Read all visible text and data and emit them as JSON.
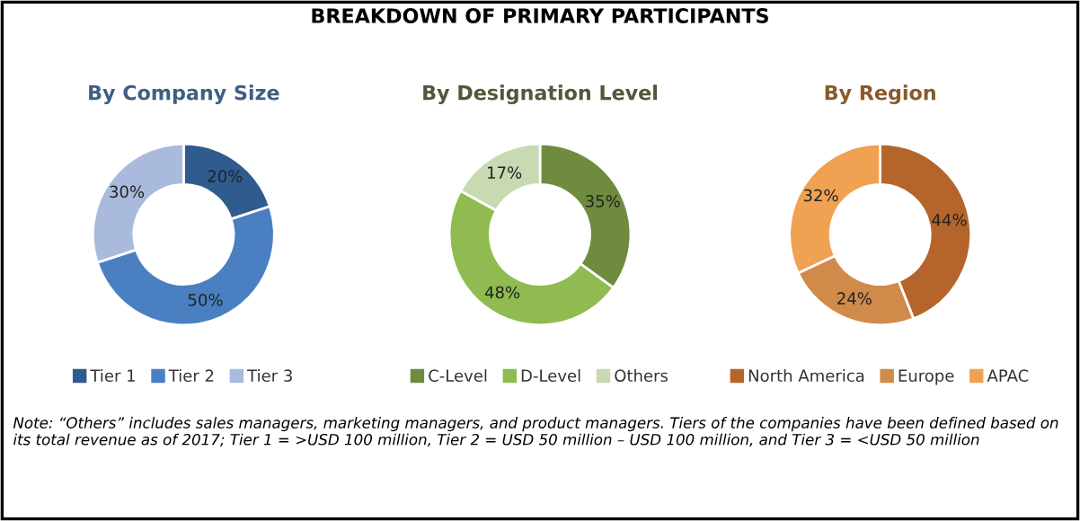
{
  "chart_data": [
    {
      "type": "donut",
      "title": "By Company Size",
      "categories": [
        "Tier 1",
        "Tier 2",
        "Tier 3"
      ],
      "values": [
        20,
        50,
        30
      ],
      "colors": [
        "#2f5b8e",
        "#4a7fc1",
        "#a9badd"
      ],
      "value_labels": [
        "20%",
        "50%",
        "30%"
      ],
      "legend": "bottom",
      "annotations": [
        "BREAKDOWN OF PRIMARY PARTICIPANTS",
        "Note: “Others” includes sales managers, marketing managers, and product managers. Tiers of the companies have been defined based on its total revenue as of 2017; Tier 1 = >USD 100 million, Tier 2 = USD 50 million – USD 100 million, and Tier 3 = <USD 50 million"
      ]
    },
    {
      "type": "donut",
      "title": "By Designation Level",
      "categories": [
        "C-Level",
        "D-Level",
        "Others"
      ],
      "values": [
        35,
        48,
        17
      ],
      "colors": [
        "#6f8c3e",
        "#8fbb50",
        "#c9d9b1"
      ],
      "value_labels": [
        "35%",
        "48%",
        "17%"
      ],
      "legend": "bottom"
    },
    {
      "type": "donut",
      "title": "By Region",
      "categories": [
        "North America",
        "Europe",
        "APAC"
      ],
      "values": [
        44,
        24,
        32
      ],
      "colors": [
        "#b5652b",
        "#d08b4b",
        "#f0a152"
      ],
      "value_labels": [
        "44%",
        "24%",
        "32%"
      ],
      "legend": "bottom"
    }
  ]
}
